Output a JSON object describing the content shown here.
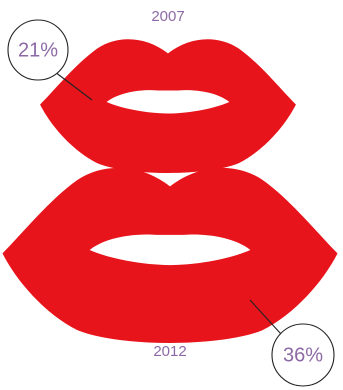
{
  "chart_data": {
    "type": "pictogram",
    "categories": [
      "2007",
      "2012"
    ],
    "values": [
      21,
      36
    ],
    "value_labels": [
      "21%",
      "36%"
    ],
    "unit": "%",
    "icon": "lips-icon",
    "title": "",
    "xlabel": "",
    "ylabel": ""
  },
  "colors": {
    "lips": "#e8141b",
    "label_text": "#8d6aa6",
    "bubble_stroke": "#222222",
    "background": "#ffffff"
  }
}
